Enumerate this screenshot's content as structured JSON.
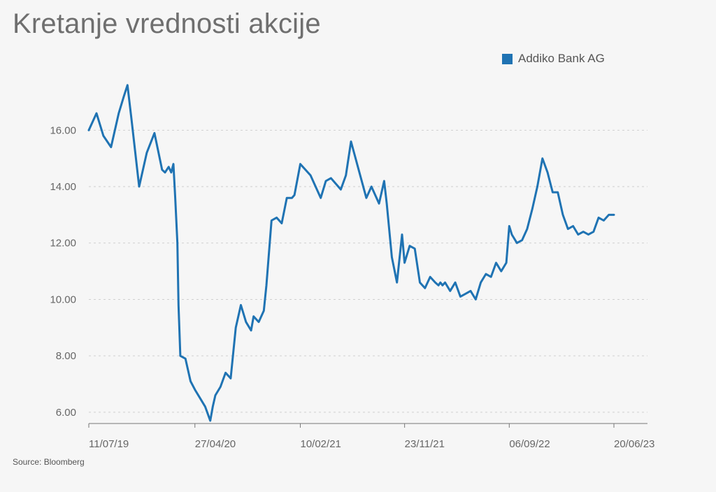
{
  "title": "Kretanje vrednosti akcije",
  "source": "Source: Bloomberg",
  "colors": {
    "series": "#1f73b3",
    "background": "#f6f6f6"
  },
  "chart_data": {
    "type": "line",
    "title": "Kretanje vrednosti akcije",
    "xlabel": "",
    "ylabel": "",
    "ylim": [
      5.6,
      16.9
    ],
    "yticks": [
      "6.00",
      "8.00",
      "10.00",
      "12.00",
      "14.00",
      "16.00"
    ],
    "xticks": [
      "11/07/19",
      "27/04/20",
      "10/02/21",
      "23/11/21",
      "06/09/22",
      "20/06/23"
    ],
    "grid": true,
    "legend_position": "top-right",
    "series": [
      {
        "name": "Addiko Bank AG",
        "x": [
          "11/07/19",
          "01/08/19",
          "20/08/19",
          "10/09/19",
          "01/10/19",
          "15/10/19",
          "25/10/19",
          "05/11/19",
          "26/11/19",
          "17/12/19",
          "07/01/20",
          "28/01/20",
          "05/02/20",
          "15/02/20",
          "22/02/20",
          "28/02/20",
          "04/03/20",
          "10/03/20",
          "13/03/20",
          "18/03/20",
          "01/04/20",
          "15/04/20",
          "27/04/20",
          "11/05/20",
          "25/05/20",
          "08/06/20",
          "15/06/20",
          "22/06/20",
          "06/07/20",
          "20/07/20",
          "03/08/20",
          "17/08/20",
          "31/08/20",
          "14/09/20",
          "28/09/20",
          "05/10/20",
          "19/10/20",
          "02/11/20",
          "09/11/20",
          "23/11/20",
          "07/12/20",
          "21/12/20",
          "04/01/21",
          "18/01/21",
          "25/01/21",
          "10/02/21",
          "10/03/21",
          "07/04/21",
          "21/04/21",
          "05/05/21",
          "01/06/21",
          "15/06/21",
          "29/06/21",
          "10/08/21",
          "24/08/21",
          "14/09/21",
          "28/09/21",
          "05/10/21",
          "19/10/21",
          "02/11/21",
          "16/11/21",
          "23/11/21",
          "07/12/21",
          "21/12/21",
          "04/01/22",
          "18/01/22",
          "01/02/22",
          "15/02/22",
          "24/02/22",
          "01/03/22",
          "07/03/22",
          "14/03/22",
          "28/03/22",
          "11/04/22",
          "25/04/22",
          "09/05/22",
          "23/05/22",
          "06/06/22",
          "20/06/22",
          "04/07/22",
          "18/07/22",
          "01/08/22",
          "15/08/22",
          "29/08/22",
          "06/09/22",
          "13/09/22",
          "27/09/22",
          "11/10/22",
          "25/10/22",
          "08/11/22",
          "22/11/22",
          "06/12/22",
          "20/12/22",
          "03/01/23",
          "17/01/23",
          "31/01/23",
          "14/02/23",
          "28/02/23",
          "14/03/23",
          "28/03/23",
          "11/04/23",
          "25/04/23",
          "09/05/23",
          "23/05/23",
          "06/06/23",
          "20/06/23"
        ],
        "values": [
          16.0,
          16.6,
          15.8,
          15.4,
          16.6,
          17.2,
          17.6,
          16.4,
          14.0,
          15.2,
          15.9,
          14.6,
          14.5,
          14.7,
          14.5,
          14.8,
          13.6,
          12.0,
          9.8,
          8.0,
          7.9,
          7.1,
          6.8,
          6.5,
          6.2,
          5.7,
          6.2,
          6.6,
          6.9,
          7.4,
          7.2,
          9.0,
          9.8,
          9.2,
          8.9,
          9.4,
          9.2,
          9.6,
          10.5,
          12.8,
          12.9,
          12.7,
          13.6,
          13.6,
          13.7,
          14.8,
          14.4,
          13.6,
          14.2,
          14.3,
          13.9,
          14.4,
          15.6,
          13.6,
          14.0,
          13.4,
          14.2,
          13.4,
          11.5,
          10.6,
          12.3,
          11.3,
          11.9,
          11.8,
          10.6,
          10.4,
          10.8,
          10.6,
          10.5,
          10.6,
          10.5,
          10.6,
          10.3,
          10.6,
          10.1,
          10.2,
          10.3,
          10.0,
          10.6,
          10.9,
          10.8,
          11.3,
          11.0,
          11.3,
          12.6,
          12.3,
          12.0,
          12.1,
          12.5,
          13.2,
          14.0,
          15.0,
          14.5,
          13.8,
          13.8,
          13.0,
          12.5,
          12.6,
          12.3,
          12.4,
          12.3,
          12.4,
          12.9,
          12.8,
          13.0,
          13.0
        ]
      }
    ]
  }
}
